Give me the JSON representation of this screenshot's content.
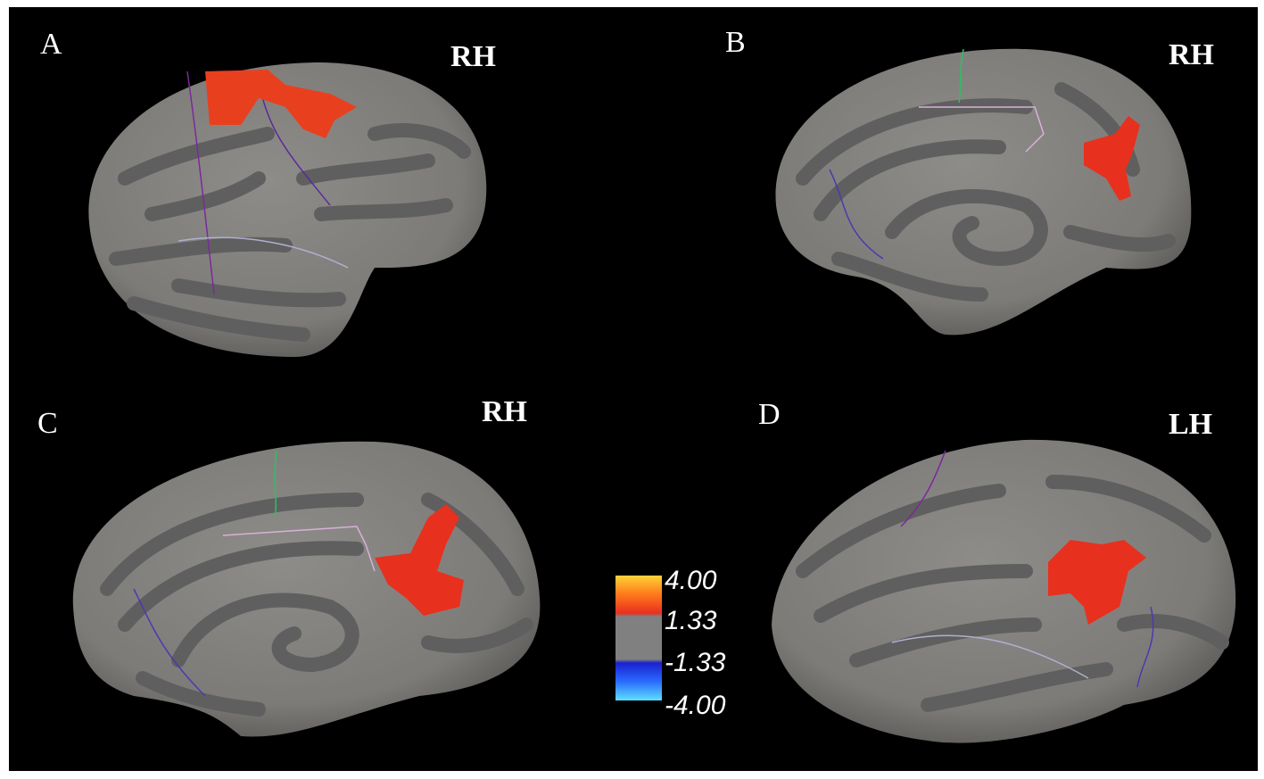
{
  "panels": [
    {
      "label": "A",
      "hemisphere": "RH"
    },
    {
      "label": "B",
      "hemisphere": "RH"
    },
    {
      "label": "C",
      "hemisphere": "RH"
    },
    {
      "label": "D",
      "hemisphere": "LH"
    }
  ],
  "colorbar": {
    "labels": [
      "4.00",
      "1.33",
      "-1.33",
      "-4.00"
    ]
  }
}
